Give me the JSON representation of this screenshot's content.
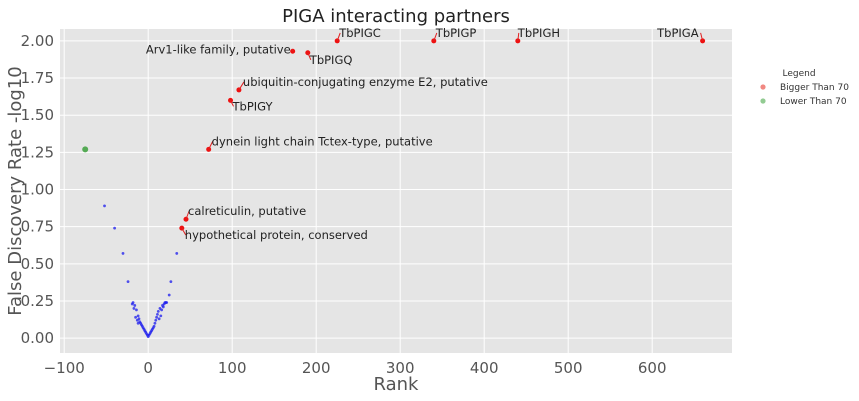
{
  "chart_data": {
    "type": "scatter",
    "title": "PIGA interacting partners",
    "xlabel": "Rank",
    "ylabel": "False Discovery Rate -log10",
    "xlim": [
      -105,
      695
    ],
    "ylim": [
      -0.1,
      2.08
    ],
    "xticks": [
      -100,
      0,
      100,
      200,
      300,
      400,
      500,
      600
    ],
    "yticks": [
      0.0,
      0.25,
      0.5,
      0.75,
      1.0,
      1.25,
      1.5,
      1.75,
      2.0
    ],
    "xtick_labels": [
      "−100",
      "0",
      "100",
      "200",
      "300",
      "400",
      "500",
      "600"
    ],
    "ytick_labels": [
      "0.00",
      "0.25",
      "0.50",
      "0.75",
      "1.00",
      "1.25",
      "1.50",
      "1.75",
      "2.00"
    ],
    "grid": true,
    "legend_position": "right",
    "legend": {
      "title": "Legend",
      "entries": [
        {
          "label": "Bigger Than 70",
          "color": "#e8382f"
        },
        {
          "label": "Lower Than 70",
          "color": "#4aa84a"
        }
      ]
    },
    "colors": {
      "background": "#e5e5e5",
      "grid": "#ffffff",
      "red": "#ee1111",
      "blue": "#1a1aee",
      "green": "#55aa55"
    },
    "series": [
      {
        "name": "Bigger Than 70",
        "color": "#ee1111",
        "points": [
          {
            "x": 660,
            "y": 2.0
          },
          {
            "x": 440,
            "y": 2.0
          },
          {
            "x": 340,
            "y": 2.0
          },
          {
            "x": 225,
            "y": 2.0
          },
          {
            "x": 190,
            "y": 1.92
          },
          {
            "x": 172,
            "y": 1.93
          },
          {
            "x": 108,
            "y": 1.67
          },
          {
            "x": 98,
            "y": 1.6
          },
          {
            "x": 72,
            "y": 1.27
          },
          {
            "x": 45,
            "y": 0.8
          },
          {
            "x": 40,
            "y": 0.74
          }
        ]
      },
      {
        "name": "Lower Than 70",
        "color": "#55aa55",
        "points": [
          {
            "x": -75,
            "y": 1.27
          }
        ]
      }
    ],
    "blue_points": [
      {
        "x": -52,
        "y": 0.89
      },
      {
        "x": -40,
        "y": 0.74
      },
      {
        "x": -30,
        "y": 0.57
      },
      {
        "x": -24,
        "y": 0.38
      },
      {
        "x": 34,
        "y": 0.57
      },
      {
        "x": 27,
        "y": 0.38
      },
      {
        "x": 25,
        "y": 0.29
      },
      {
        "x": -18,
        "y": 0.24
      },
      {
        "x": -16,
        "y": 0.22
      },
      {
        "x": -14,
        "y": 0.19
      },
      {
        "x": -12,
        "y": 0.15
      },
      {
        "x": -11,
        "y": 0.13
      },
      {
        "x": -10,
        "y": 0.11
      },
      {
        "x": -9,
        "y": 0.1
      },
      {
        "x": -8,
        "y": 0.09
      },
      {
        "x": -7,
        "y": 0.08
      },
      {
        "x": -6,
        "y": 0.07
      },
      {
        "x": -5,
        "y": 0.06
      },
      {
        "x": -4,
        "y": 0.05
      },
      {
        "x": -3,
        "y": 0.04
      },
      {
        "x": -2,
        "y": 0.03
      },
      {
        "x": -1,
        "y": 0.02
      },
      {
        "x": 0,
        "y": 0.01
      },
      {
        "x": 1,
        "y": 0.02
      },
      {
        "x": 2,
        "y": 0.03
      },
      {
        "x": 3,
        "y": 0.04
      },
      {
        "x": 4,
        "y": 0.05
      },
      {
        "x": 5,
        "y": 0.06
      },
      {
        "x": 6,
        "y": 0.07
      },
      {
        "x": 7,
        "y": 0.08
      },
      {
        "x": 8,
        "y": 0.1
      },
      {
        "x": 9,
        "y": 0.12
      },
      {
        "x": 10,
        "y": 0.14
      },
      {
        "x": 11,
        "y": 0.16
      },
      {
        "x": 12,
        "y": 0.18
      },
      {
        "x": 14,
        "y": 0.2
      },
      {
        "x": 17,
        "y": 0.22
      },
      {
        "x": 20,
        "y": 0.24
      },
      {
        "x": 22,
        "y": 0.24
      },
      {
        "x": -15,
        "y": 0.14
      },
      {
        "x": -13,
        "y": 0.12
      },
      {
        "x": -12,
        "y": 0.1
      },
      {
        "x": 13,
        "y": 0.13
      },
      {
        "x": 15,
        "y": 0.15
      },
      {
        "x": -17,
        "y": 0.2
      },
      {
        "x": 16,
        "y": 0.19
      },
      {
        "x": 18,
        "y": 0.21
      },
      {
        "x": -19,
        "y": 0.23
      },
      {
        "x": 19,
        "y": 0.23
      },
      {
        "x": 21,
        "y": 0.24
      }
    ],
    "annotations": [
      {
        "text": "TbPIGA",
        "x": 660,
        "y": 2.0,
        "anchor": "end",
        "dx": -4,
        "dy": -4
      },
      {
        "text": "TbPIGH",
        "x": 440,
        "y": 2.0,
        "anchor": "start",
        "dx": 0,
        "dy": -4
      },
      {
        "text": "TbPIGP",
        "x": 340,
        "y": 2.0,
        "anchor": "start",
        "dx": 2,
        "dy": -4
      },
      {
        "text": "TbPIGC",
        "x": 225,
        "y": 2.0,
        "anchor": "start",
        "dx": 2,
        "dy": -4
      },
      {
        "text": "TbPIGQ",
        "x": 190,
        "y": 1.92,
        "anchor": "start",
        "dx": 2,
        "dy": 11
      },
      {
        "text": "Arv1-like family, putative",
        "x": 172,
        "y": 1.93,
        "anchor": "end",
        "dx": -2,
        "dy": 2
      },
      {
        "text": "ubiquitin-conjugating enzyme E2, putative",
        "x": 108,
        "y": 1.67,
        "anchor": "start",
        "dx": 4,
        "dy": -4
      },
      {
        "text": "TbPIGY",
        "x": 98,
        "y": 1.6,
        "anchor": "start",
        "dx": 2,
        "dy": 10
      },
      {
        "text": "dynein light chain Tctex-type, putative",
        "x": 72,
        "y": 1.27,
        "anchor": "start",
        "dx": 3,
        "dy": -4
      },
      {
        "text": "calreticulin, putative",
        "x": 45,
        "y": 0.8,
        "anchor": "start",
        "dx": 2,
        "dy": -4
      },
      {
        "text": "hypothetical protein, conserved",
        "x": 40,
        "y": 0.74,
        "anchor": "start",
        "dx": 3,
        "dy": 11
      }
    ]
  }
}
